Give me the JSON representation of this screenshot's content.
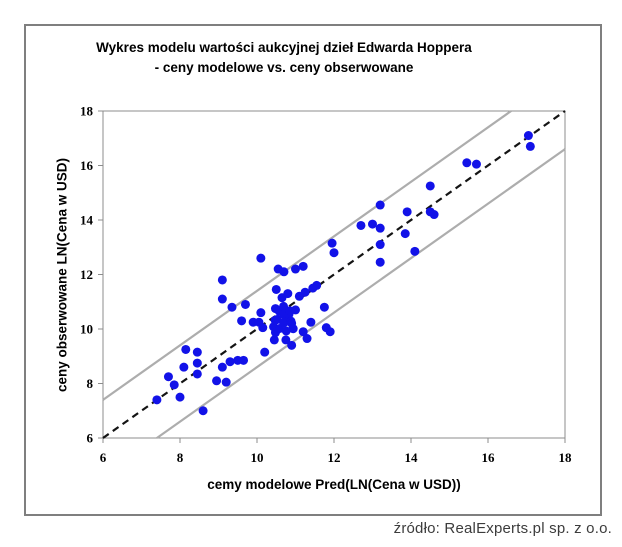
{
  "chart_data": {
    "type": "scatter",
    "title_line1": "Wykres modelu wartości aukcyjnej dzieł Edwarda Hoppera",
    "title_line2": "- ceny modelowe vs. ceny obserwowane",
    "xlabel": "cemy modelowe Pred(LN(Cena w USD))",
    "ylabel": "ceny obserwowane LN(Cena w USD)",
    "xlim": [
      6,
      18
    ],
    "ylim": [
      6,
      18
    ],
    "xticks": [
      6,
      8,
      10,
      12,
      14,
      16,
      18
    ],
    "yticks": [
      6,
      8,
      10,
      12,
      14,
      16,
      18
    ],
    "grid": false,
    "identity_line": {
      "style": "dashed",
      "color": "#141414",
      "from": 6,
      "to": 18
    },
    "bands": {
      "offset": 1.4,
      "color": "#adadad"
    },
    "point_color": "#1212e8",
    "plot_border_color": "#8c8c8c",
    "points": [
      [
        7.4,
        7.4
      ],
      [
        7.7,
        8.25
      ],
      [
        7.85,
        7.95
      ],
      [
        8.0,
        7.5
      ],
      [
        8.15,
        9.25
      ],
      [
        8.1,
        8.6
      ],
      [
        8.45,
        9.15
      ],
      [
        8.45,
        8.75
      ],
      [
        8.45,
        8.35
      ],
      [
        8.6,
        7.0
      ],
      [
        8.95,
        8.1
      ],
      [
        9.2,
        8.05
      ],
      [
        9.1,
        8.6
      ],
      [
        9.3,
        8.8
      ],
      [
        9.5,
        8.85
      ],
      [
        9.65,
        8.85
      ],
      [
        9.1,
        11.8
      ],
      [
        9.1,
        11.1
      ],
      [
        9.35,
        10.8
      ],
      [
        9.7,
        10.9
      ],
      [
        9.6,
        10.3
      ],
      [
        9.9,
        10.25
      ],
      [
        10.1,
        12.6
      ],
      [
        10.2,
        9.15
      ],
      [
        10.45,
        9.6
      ],
      [
        10.75,
        9.6
      ],
      [
        10.9,
        9.4
      ],
      [
        11.3,
        9.65
      ],
      [
        11.2,
        9.9
      ],
      [
        10.05,
        10.25
      ],
      [
        10.1,
        10.6
      ],
      [
        10.15,
        10.05
      ],
      [
        10.43,
        10.08
      ],
      [
        10.47,
        10.32
      ],
      [
        10.48,
        10.75
      ],
      [
        10.48,
        9.87
      ],
      [
        10.52,
        10.35
      ],
      [
        10.58,
        10.65
      ],
      [
        10.59,
        10.02
      ],
      [
        10.69,
        10.83
      ],
      [
        10.69,
        10.53
      ],
      [
        10.69,
        10.23
      ],
      [
        10.73,
        10.26
      ],
      [
        10.76,
        9.93
      ],
      [
        10.83,
        10.54
      ],
      [
        10.85,
        10.67
      ],
      [
        10.88,
        10.29
      ],
      [
        10.9,
        10.21
      ],
      [
        10.94,
        10.01
      ],
      [
        10.5,
        11.45
      ],
      [
        10.65,
        11.15
      ],
      [
        10.8,
        11.3
      ],
      [
        11.0,
        10.7
      ],
      [
        11.1,
        11.2
      ],
      [
        11.25,
        11.35
      ],
      [
        11.45,
        11.5
      ],
      [
        11.55,
        11.6
      ],
      [
        11.4,
        10.25
      ],
      [
        11.75,
        10.8
      ],
      [
        11.8,
        10.05
      ],
      [
        11.9,
        9.9
      ],
      [
        10.55,
        12.2
      ],
      [
        10.7,
        12.1
      ],
      [
        11.0,
        12.2
      ],
      [
        11.2,
        12.3
      ],
      [
        11.95,
        13.15
      ],
      [
        12.0,
        12.8
      ],
      [
        12.7,
        13.8
      ],
      [
        13.0,
        13.85
      ],
      [
        13.2,
        13.7
      ],
      [
        13.2,
        13.1
      ],
      [
        13.2,
        14.55
      ],
      [
        13.9,
        14.3
      ],
      [
        13.85,
        13.5
      ],
      [
        13.2,
        12.45
      ],
      [
        14.1,
        12.85
      ],
      [
        14.5,
        15.25
      ],
      [
        14.5,
        14.3
      ],
      [
        14.6,
        14.2
      ],
      [
        15.45,
        16.1
      ],
      [
        15.7,
        16.05
      ],
      [
        17.05,
        17.1
      ],
      [
        17.1,
        16.7
      ]
    ]
  },
  "source": "źródło: RealExperts.pl sp. z o.o."
}
